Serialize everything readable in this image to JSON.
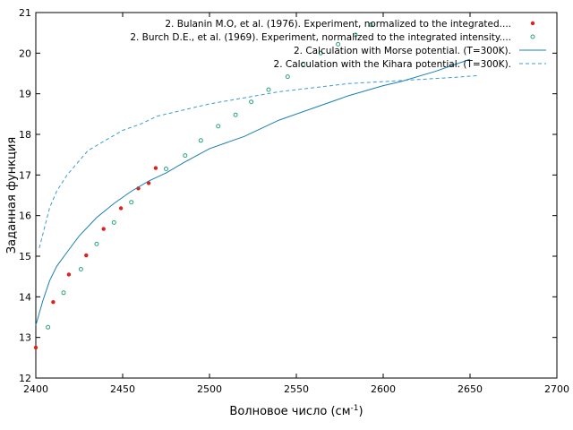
{
  "chart_data": {
    "type": "scatter",
    "title": "",
    "xlabel": "Волновое число (см",
    "xlabel_sup": "-1",
    "xlabel_tail": ")",
    "ylabel": "Заданная функция",
    "xlim": [
      2400,
      2700
    ],
    "ylim": [
      12,
      21
    ],
    "xticks": [
      2400,
      2450,
      2500,
      2550,
      2600,
      2650,
      2700
    ],
    "yticks": [
      12,
      13,
      14,
      15,
      16,
      17,
      18,
      19,
      20,
      21
    ],
    "grid": false,
    "legend_position": "top-right",
    "series": [
      {
        "name": "2. Bulanin M.O, et al. (1976). Experiment, normalized to the integrated....",
        "style": "filled-dots",
        "color": "#e0201b",
        "x": [
          2400,
          2410,
          2419,
          2429,
          2439,
          2449,
          2459,
          2465,
          2469
        ],
        "y": [
          12.75,
          13.87,
          14.55,
          15.02,
          15.67,
          16.18,
          16.67,
          16.8,
          17.17
        ]
      },
      {
        "name": "2. Burch D.E., et al. (1969). Experiment, normalized to the integrated intensity....",
        "style": "open-circles",
        "color": "#2aa37f",
        "x": [
          2407,
          2416,
          2426,
          2435,
          2445,
          2455,
          2475,
          2486,
          2495,
          2505,
          2515,
          2524,
          2534,
          2545,
          2554,
          2564,
          2574,
          2584,
          2593
        ],
        "y": [
          13.25,
          14.1,
          14.68,
          15.3,
          15.83,
          16.33,
          17.15,
          17.48,
          17.85,
          18.2,
          18.48,
          18.8,
          19.1,
          19.42,
          19.72,
          20.0,
          20.22,
          20.45,
          20.7
        ]
      },
      {
        "name": "2. Calculation with Morse potential. (T=300K).",
        "style": "solid-line",
        "color": "#1a7fb0",
        "x": [
          2400,
          2404,
          2408,
          2412,
          2418,
          2425,
          2435,
          2445,
          2455,
          2465,
          2475,
          2485,
          2500,
          2520,
          2540,
          2560,
          2580,
          2600,
          2610,
          2630,
          2650
        ],
        "y": [
          13.3,
          13.9,
          14.4,
          14.75,
          15.1,
          15.5,
          15.95,
          16.3,
          16.6,
          16.85,
          17.05,
          17.3,
          17.65,
          17.95,
          18.35,
          18.65,
          18.95,
          19.2,
          19.3,
          19.55,
          19.85
        ]
      },
      {
        "name": "2. Calculation with the Kihara potential. (T=300K).",
        "style": "dashed-line",
        "color": "#3b9bd6",
        "x": [
          2402,
          2405,
          2408,
          2412,
          2418,
          2425,
          2430,
          2440,
          2450,
          2460,
          2470,
          2480,
          2490,
          2500,
          2520,
          2540,
          2560,
          2580,
          2600,
          2620,
          2640,
          2655
        ],
        "y": [
          15.2,
          15.7,
          16.2,
          16.6,
          17.0,
          17.35,
          17.6,
          17.85,
          18.1,
          18.25,
          18.45,
          18.55,
          18.65,
          18.75,
          18.9,
          19.05,
          19.15,
          19.25,
          19.3,
          19.35,
          19.4,
          19.45
        ]
      }
    ]
  }
}
